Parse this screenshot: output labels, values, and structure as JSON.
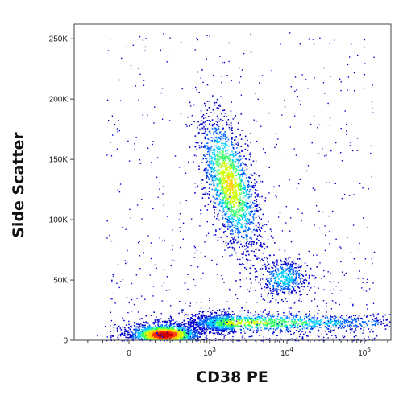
{
  "chart_data": {
    "type": "scatter",
    "subtype": "flow-cytometry-density-dot-plot",
    "title": "",
    "xlabel": "CD38 PE",
    "ylabel": "Side Scatter",
    "x_scale": "biexponential (linear near 0, log above)",
    "xlim": [
      -300,
      200000
    ],
    "ylim": [
      0,
      262144
    ],
    "x_ticks": [
      {
        "value": 0,
        "label": "0"
      },
      {
        "value": 1000,
        "base": "10",
        "exp": "3"
      },
      {
        "value": 10000,
        "base": "10",
        "exp": "4"
      },
      {
        "value": 100000,
        "base": "10",
        "exp": "5"
      }
    ],
    "y_ticks": [
      {
        "value": 0,
        "label": "0"
      },
      {
        "value": 50000,
        "label": "50K"
      },
      {
        "value": 100000,
        "label": "100K"
      },
      {
        "value": 150000,
        "label": "150K"
      },
      {
        "value": 200000,
        "label": "200K"
      },
      {
        "value": 250000,
        "label": "250K"
      }
    ],
    "grid": false,
    "legend": "none",
    "density_colors": [
      "#0000cc",
      "#0066ff",
      "#00ccff",
      "#33ff66",
      "#ccff00",
      "#ffcc00",
      "#ff3300",
      "#cc0000"
    ],
    "populations": [
      {
        "x_center": 150,
        "y_center": 5000,
        "note": "CD38-negative, low side scatter"
      },
      {
        "x_center": 2000,
        "y_center": 15000,
        "note": "CD38-positive, low side scatter band"
      },
      {
        "x_center": 1800,
        "y_center": 130000,
        "note": "CD38 dim, high side scatter"
      },
      {
        "x_center": 9000,
        "y_center": 52000,
        "note": "CD38 bright, mid side scatter"
      }
    ]
  }
}
